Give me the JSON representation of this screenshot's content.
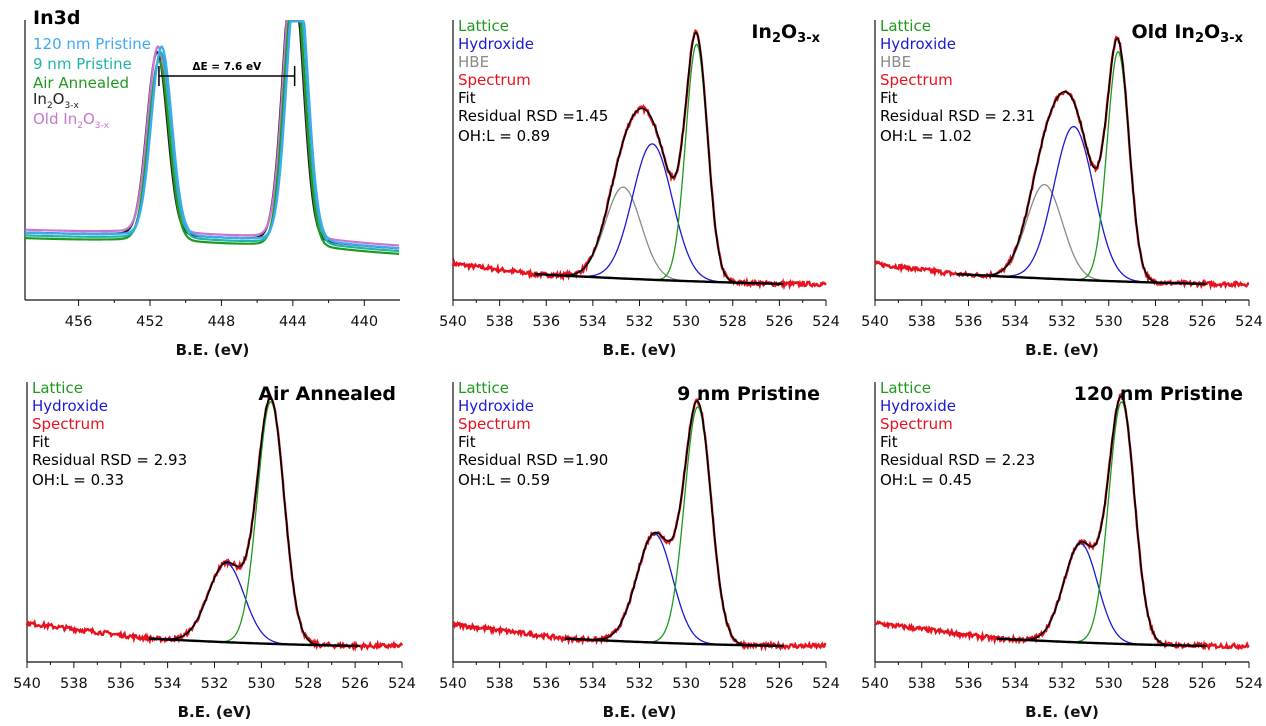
{
  "colors": {
    "Lattice": "#1f9a1f",
    "Hydroxide": "#1a1ad6",
    "HBE": "#8a8a8a",
    "Spectrum": "#e8121e",
    "Fit": "#000000",
    "Background": "#000000",
    "120 nm Pristine": "#3fa9f5",
    "9 nm Pristine": "#1fb5a8",
    "Air Annealed": "#1f9a1f",
    "In2O3-x": "#222222",
    "Old In2O3-x": "#c678d0"
  },
  "chart_data": [
    {
      "type": "line",
      "title": "In3d",
      "xlabel": "B.E. (eV)",
      "xlim": [
        459,
        438
      ],
      "xticks": [
        456,
        452,
        448,
        444,
        440
      ],
      "legend": [
        {
          "text": "120 nm Pristine",
          "key": "120 nm Pristine"
        },
        {
          "text": "9 nm Pristine",
          "key": "9 nm Pristine"
        },
        {
          "text": "Air Annealed",
          "key": "Air Annealed"
        },
        {
          "text": "In",
          "sub1": "2",
          "mid": "O",
          "sub2": "3-x",
          "key": "In2O3-x"
        },
        {
          "text": "Old In",
          "sub1": "2",
          "mid": "O",
          "sub2": "3-x",
          "key": "Old In2O3-x"
        }
      ],
      "annotation": {
        "text": "ΔE = 7.6 eV",
        "from": 451.5,
        "to": 443.9
      },
      "series": [
        {
          "key": "In2O3-x",
          "peak1": 451.6,
          "peak2": 444.0,
          "h1": 0.64,
          "h2": 0.95,
          "base": 0.18
        },
        {
          "key": "Old In2O3-x",
          "peak1": 451.55,
          "peak2": 443.95,
          "h1": 0.65,
          "h2": 0.96,
          "base": 0.19
        },
        {
          "key": "Air Annealed",
          "peak1": 451.5,
          "peak2": 443.9,
          "h1": 0.63,
          "h2": 0.94,
          "base": 0.16
        },
        {
          "key": "9 nm Pristine",
          "peak1": 451.4,
          "peak2": 443.8,
          "h1": 0.65,
          "h2": 0.96,
          "base": 0.17
        },
        {
          "key": "120 nm Pristine",
          "peak1": 451.35,
          "peak2": 443.75,
          "h1": 0.66,
          "h2": 0.97,
          "base": 0.18
        }
      ]
    },
    {
      "type": "line",
      "title_parts": [
        "In",
        "2",
        "O",
        "3-x"
      ],
      "xlabel": "B.E. (eV)",
      "xlim": [
        540,
        524
      ],
      "xticks": [
        540,
        538,
        536,
        534,
        532,
        530,
        528,
        526,
        524
      ],
      "legend": [
        "Lattice",
        "Hydroxide",
        "HBE",
        "Spectrum",
        "Fit"
      ],
      "annotations": [
        "Residual RSD =1.45",
        "OH:L = 0.89"
      ],
      "fit_range": [
        536.5,
        525.8
      ],
      "lattice": {
        "center": 529.55,
        "height": 0.98,
        "fwhm": 1.1
      },
      "hydroxide": {
        "center": 531.45,
        "height": 0.55,
        "fwhm": 2.0
      },
      "hbe": {
        "center": 532.7,
        "height": 0.37,
        "fwhm": 1.8
      },
      "background": {
        "left": 0.04,
        "right": 0.0
      }
    },
    {
      "type": "line",
      "title_parts": [
        "Old In",
        "2",
        "O",
        "3-x"
      ],
      "xlabel": "B.E. (eV)",
      "xlim": [
        540,
        524
      ],
      "xticks": [
        540,
        538,
        536,
        534,
        532,
        530,
        528,
        526,
        524
      ],
      "legend": [
        "Lattice",
        "Hydroxide",
        "HBE",
        "Spectrum",
        "Fit"
      ],
      "annotations": [
        "Residual RSD = 2.31",
        "OH:L = 1.02"
      ],
      "fit_range": [
        536.5,
        525.8
      ],
      "lattice": {
        "center": 529.6,
        "height": 0.95,
        "fwhm": 1.1
      },
      "hydroxide": {
        "center": 531.5,
        "height": 0.62,
        "fwhm": 2.0
      },
      "hbe": {
        "center": 532.75,
        "height": 0.38,
        "fwhm": 1.8
      },
      "background": {
        "left": 0.04,
        "right": 0.0
      }
    },
    {
      "type": "line",
      "title": "Air Annealed",
      "xlabel": "B.E. (eV)",
      "xlim": [
        540,
        524
      ],
      "xticks": [
        540,
        538,
        536,
        534,
        532,
        530,
        528,
        526,
        524
      ],
      "legend": [
        "Lattice",
        "Hydroxide",
        "Spectrum",
        "Fit"
      ],
      "annotations": [
        "Residual RSD = 2.93",
        "OH:L = 0.33"
      ],
      "fit_range": [
        534.8,
        525.8
      ],
      "lattice": {
        "center": 529.6,
        "height": 1.0,
        "fwhm": 1.35
      },
      "hydroxide": {
        "center": 531.5,
        "height": 0.32,
        "fwhm": 1.8
      },
      "background": {
        "left": 0.03,
        "right": 0.0
      }
    },
    {
      "type": "line",
      "title": "9 nm Pristine",
      "xlabel": "B.E. (eV)",
      "xlim": [
        540,
        524
      ],
      "xticks": [
        540,
        538,
        536,
        534,
        532,
        530,
        528,
        526,
        524
      ],
      "legend": [
        "Lattice",
        "Hydroxide",
        "Spectrum",
        "Fit"
      ],
      "annotations": [
        "Residual RSD =1.90",
        "OH:L = 0.59"
      ],
      "fit_range": [
        535.2,
        525.8
      ],
      "lattice": {
        "center": 529.5,
        "height": 0.98,
        "fwhm": 1.35
      },
      "hydroxide": {
        "center": 531.35,
        "height": 0.44,
        "fwhm": 1.8
      },
      "background": {
        "left": 0.03,
        "right": 0.0
      }
    },
    {
      "type": "line",
      "title": "120 nm Pristine",
      "xlabel": "B.E. (eV)",
      "xlim": [
        540,
        524
      ],
      "xticks": [
        540,
        538,
        536,
        534,
        532,
        530,
        528,
        526,
        524
      ],
      "legend": [
        "Lattice",
        "Hydroxide",
        "Spectrum",
        "Fit"
      ],
      "annotations": [
        "Residual RSD = 2.23",
        "OH:L = 0.45"
      ],
      "fit_range": [
        534.8,
        525.8
      ],
      "lattice": {
        "center": 529.45,
        "height": 1.0,
        "fwhm": 1.3
      },
      "hydroxide": {
        "center": 531.2,
        "height": 0.4,
        "fwhm": 1.7
      },
      "background": {
        "left": 0.03,
        "right": 0.0
      }
    }
  ]
}
